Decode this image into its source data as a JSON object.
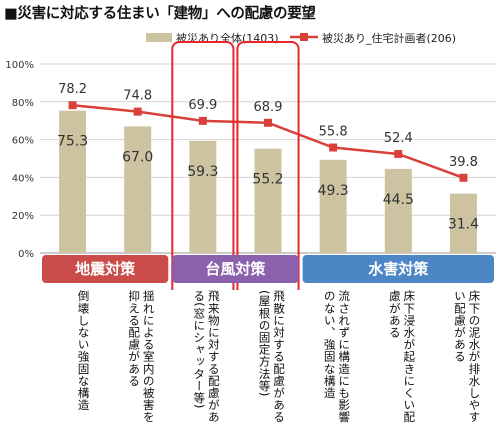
{
  "title": "■災害に対応する住まい「建物」への配慮の要望",
  "legend": {
    "bar_series_label": "被災あり全体(1403)",
    "line_series_label": "被災あり_住宅計画者(206)"
  },
  "colors": {
    "bar": "#cdc3a1",
    "line": "#d9403a",
    "highlight_box": "#e8262c",
    "grid": "#d4d4d4",
    "group_earthquake": "#c94b4a",
    "group_typhoon": "#8b61ad",
    "group_flood": "#4d86c4"
  },
  "groups": [
    {
      "label": "地震対策",
      "start": 0,
      "end": 1,
      "color_key": "group_earthquake"
    },
    {
      "label": "台風対策",
      "start": 2,
      "end": 3,
      "color_key": "group_typhoon"
    },
    {
      "label": "水害対策",
      "start": 4,
      "end": 6,
      "color_key": "group_flood"
    }
  ],
  "highlighted_categories": [
    2,
    3
  ],
  "chart_data": {
    "type": "bar",
    "categories": [
      "倒壊しない強固な構造",
      "揺れによる室内の被害を抑える配慮がある",
      "飛来物に対する配慮がある(窓にシャッター等)",
      "飛散に対する配慮がある(屋根の固定方法等)",
      "流されずに構造にも影響のない、強固な構造",
      "床下浸水が起きにくい配慮がある",
      "床下の泥水が排水しやすい配慮がある"
    ],
    "series": [
      {
        "name": "被災あり全体(1403)",
        "kind": "bar",
        "values": [
          75.3,
          67.0,
          59.3,
          55.2,
          49.3,
          44.5,
          31.4
        ]
      },
      {
        "name": "被災あり_住宅計画者(206)",
        "kind": "line",
        "values": [
          78.2,
          74.8,
          69.9,
          68.9,
          55.8,
          52.4,
          39.8
        ]
      }
    ],
    "bar_labels": [
      "75.3",
      "67.0",
      "59.3",
      "55.2",
      "49.3",
      "44.5",
      "31.4"
    ],
    "line_labels": [
      "78.2",
      "74.8",
      "69.9",
      "68.9",
      "55.8",
      "52.4",
      "39.8"
    ],
    "y_ticks": [
      "0%",
      "20%",
      "40%",
      "60%",
      "80%",
      "100%"
    ],
    "ylim": [
      0,
      100
    ],
    "grid": true,
    "legend_position": "top"
  }
}
